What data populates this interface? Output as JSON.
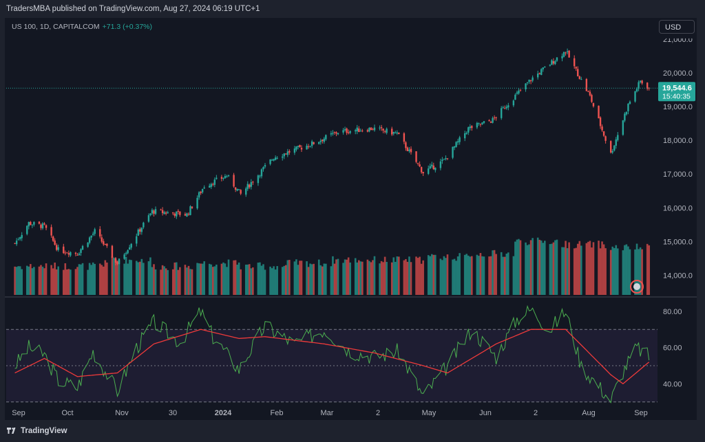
{
  "header": {
    "published": "TradersMBA published on TradingView.com, Aug 27, 2024 06:19 UTC+1",
    "symbol": "US 100, 1D, CAPITALCOM",
    "change": "+71.3 (+0.37%)",
    "currency_button": "USD"
  },
  "footer": {
    "brand": "TradingView"
  },
  "colors": {
    "up": "#26a69a",
    "down": "#ef5350",
    "rsi": "#4caf50",
    "rsi_ma": "#ef3a3a",
    "background": "#131722"
  },
  "chart_data": {
    "type": "candlestick",
    "price_axis": {
      "ticks": [
        14000,
        15000,
        16000,
        17000,
        18000,
        19000,
        20000
      ],
      "tick_labels": [
        "14,000.0",
        "15,000.0",
        "16,000.0",
        "17,000.0",
        "18,000.0",
        "19,000.0",
        "20,000.0"
      ],
      "partial_top_label": "21,000.0",
      "ylim": [
        13400,
        21200
      ]
    },
    "last_price": {
      "value": 19544.6,
      "label": "19,544.6",
      "countdown": "15:40:35"
    },
    "x_labels": [
      "Sep",
      "Oct",
      "Nov",
      "30",
      "2024",
      "Feb",
      "Mar",
      "2",
      "May",
      "Jun",
      "2",
      "Aug",
      "Sep"
    ],
    "price_path": [
      {
        "date": "2023-08-28",
        "close": 14950
      },
      {
        "date": "2023-09-05",
        "close": 15550
      },
      {
        "date": "2023-09-14",
        "close": 15450
      },
      {
        "date": "2023-09-22",
        "close": 14750
      },
      {
        "date": "2023-10-03",
        "close": 14650
      },
      {
        "date": "2023-10-13",
        "close": 15300
      },
      {
        "date": "2023-10-26",
        "close": 14350
      },
      {
        "date": "2023-11-15",
        "close": 15900
      },
      {
        "date": "2023-12-05",
        "close": 15800
      },
      {
        "date": "2023-12-15",
        "close": 16650
      },
      {
        "date": "2023-12-28",
        "close": 16950
      },
      {
        "date": "2024-01-05",
        "close": 16400
      },
      {
        "date": "2024-01-24",
        "close": 17500
      },
      {
        "date": "2024-02-15",
        "close": 17900
      },
      {
        "date": "2024-03-01",
        "close": 18250
      },
      {
        "date": "2024-03-21",
        "close": 18350
      },
      {
        "date": "2024-04-04",
        "close": 18200
      },
      {
        "date": "2024-04-19",
        "close": 17050
      },
      {
        "date": "2024-05-01",
        "close": 17400
      },
      {
        "date": "2024-05-15",
        "close": 18350
      },
      {
        "date": "2024-05-29",
        "close": 18600
      },
      {
        "date": "2024-06-07",
        "close": 19100
      },
      {
        "date": "2024-06-20",
        "close": 19800
      },
      {
        "date": "2024-07-10",
        "close": 20650
      },
      {
        "date": "2024-07-24",
        "close": 19300
      },
      {
        "date": "2024-08-05",
        "close": 17600
      },
      {
        "date": "2024-08-15",
        "close": 19050
      },
      {
        "date": "2024-08-22",
        "close": 19750
      },
      {
        "date": "2024-08-27",
        "close": 19544.6
      }
    ],
    "volume": {
      "series": "volume",
      "note_values_relative": [
        0.4,
        0.4,
        0.5,
        0.4,
        0.45,
        0.4,
        0.45,
        0.5,
        0.5,
        0.55,
        0.6,
        0.8,
        0.75,
        0.7
      ]
    },
    "rsi": {
      "axis_ticks": [
        40,
        60,
        80
      ],
      "tick_labels": [
        "40.00",
        "60.00",
        "80.00"
      ],
      "bands": [
        30,
        50,
        70
      ],
      "ylim": [
        28,
        86
      ],
      "rsi_path": [
        {
          "date": "2023-08-28",
          "value": 50
        },
        {
          "date": "2023-09-05",
          "value": 60
        },
        {
          "date": "2023-09-14",
          "value": 56
        },
        {
          "date": "2023-09-22",
          "value": 42
        },
        {
          "date": "2023-10-03",
          "value": 38
        },
        {
          "date": "2023-10-12",
          "value": 58
        },
        {
          "date": "2023-10-26",
          "value": 36
        },
        {
          "date": "2023-11-06",
          "value": 60
        },
        {
          "date": "2023-11-16",
          "value": 74
        },
        {
          "date": "2023-12-01",
          "value": 63
        },
        {
          "date": "2023-12-13",
          "value": 80
        },
        {
          "date": "2023-12-20",
          "value": 66
        },
        {
          "date": "2024-01-04",
          "value": 48
        },
        {
          "date": "2024-01-19",
          "value": 72
        },
        {
          "date": "2024-02-05",
          "value": 62
        },
        {
          "date": "2024-02-22",
          "value": 70
        },
        {
          "date": "2024-03-08",
          "value": 58
        },
        {
          "date": "2024-03-22",
          "value": 55
        },
        {
          "date": "2024-04-05",
          "value": 58
        },
        {
          "date": "2024-04-19",
          "value": 33
        },
        {
          "date": "2024-05-03",
          "value": 50
        },
        {
          "date": "2024-05-17",
          "value": 70
        },
        {
          "date": "2024-05-31",
          "value": 55
        },
        {
          "date": "2024-06-12",
          "value": 76
        },
        {
          "date": "2024-06-20",
          "value": 81
        },
        {
          "date": "2024-07-01",
          "value": 70
        },
        {
          "date": "2024-07-10",
          "value": 80
        },
        {
          "date": "2024-07-19",
          "value": 50
        },
        {
          "date": "2024-08-05",
          "value": 31
        },
        {
          "date": "2024-08-12",
          "value": 47
        },
        {
          "date": "2024-08-20",
          "value": 60
        },
        {
          "date": "2024-08-27",
          "value": 55
        }
      ],
      "ma_path": [
        {
          "date": "2023-08-28",
          "value": 46
        },
        {
          "date": "2023-09-14",
          "value": 54
        },
        {
          "date": "2023-10-03",
          "value": 44
        },
        {
          "date": "2023-10-26",
          "value": 46
        },
        {
          "date": "2023-11-16",
          "value": 62
        },
        {
          "date": "2023-12-13",
          "value": 70
        },
        {
          "date": "2024-01-04",
          "value": 65
        },
        {
          "date": "2024-01-19",
          "value": 66
        },
        {
          "date": "2024-02-22",
          "value": 62
        },
        {
          "date": "2024-03-22",
          "value": 57
        },
        {
          "date": "2024-04-19",
          "value": 50
        },
        {
          "date": "2024-05-03",
          "value": 46
        },
        {
          "date": "2024-05-31",
          "value": 62
        },
        {
          "date": "2024-06-20",
          "value": 70
        },
        {
          "date": "2024-07-10",
          "value": 70
        },
        {
          "date": "2024-08-05",
          "value": 45
        },
        {
          "date": "2024-08-12",
          "value": 40
        },
        {
          "date": "2024-08-27",
          "value": 52
        }
      ]
    }
  }
}
